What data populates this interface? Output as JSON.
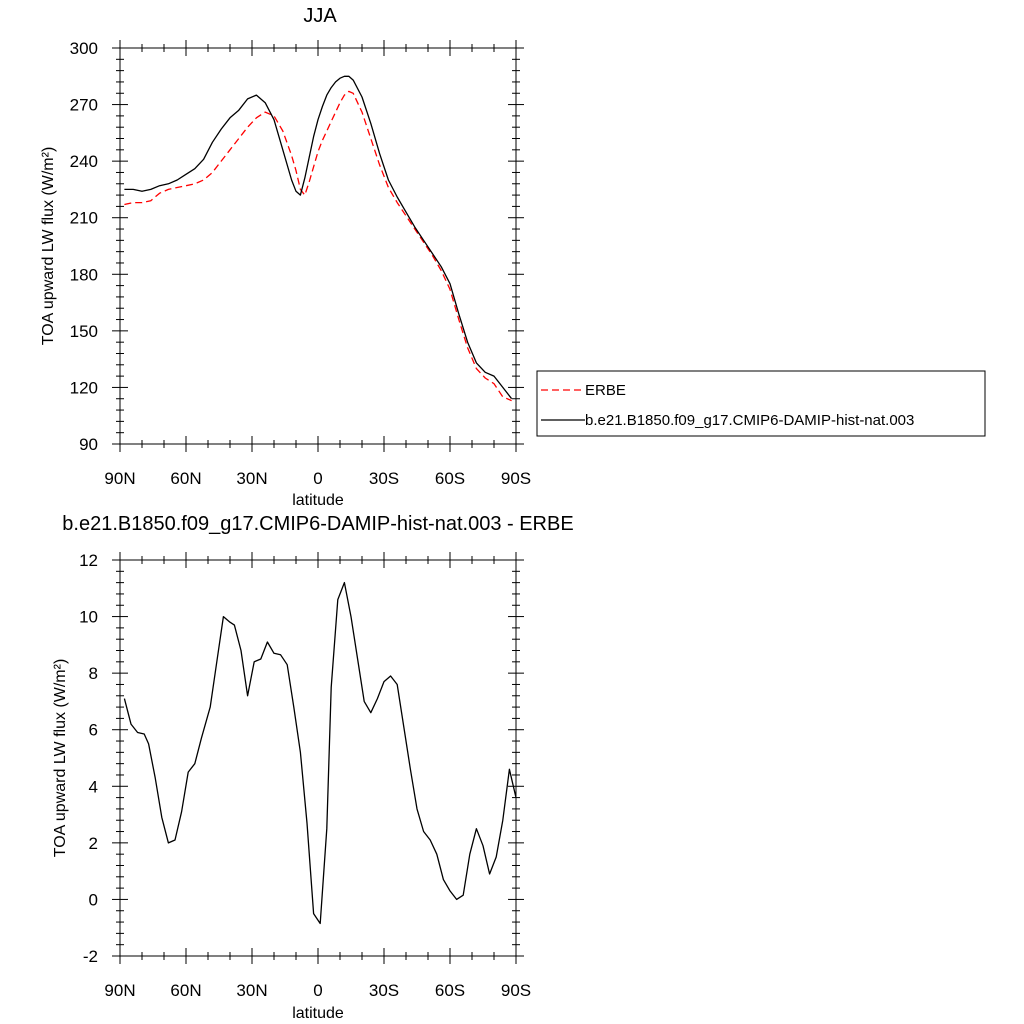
{
  "chart_data": [
    {
      "type": "line",
      "title": "JJA",
      "xlabel": "latitude",
      "ylabel": "TOA upward LW flux (W/m²)",
      "xlim": [
        -90,
        90
      ],
      "ylim": [
        90,
        300
      ],
      "xticks": [
        -90,
        -60,
        -30,
        0,
        30,
        60,
        90
      ],
      "xtick_labels": [
        "90N",
        "60N",
        "30N",
        "0",
        "30S",
        "60S",
        "90S"
      ],
      "yticks": [
        90,
        120,
        150,
        180,
        210,
        240,
        270,
        300
      ],
      "ytick_labels": [
        "90",
        "120",
        "150",
        "180",
        "210",
        "240",
        "270",
        "300"
      ],
      "grid": false,
      "legend": "outside-right",
      "series": [
        {
          "name": "ERBE",
          "color": "#ff0000",
          "dash": "dashed",
          "x": [
            -88,
            -84,
            -80,
            -76,
            -72,
            -68,
            -64,
            -60,
            -56,
            -52,
            -48,
            -44,
            -40,
            -36,
            -32,
            -28,
            -24,
            -20,
            -16,
            -12,
            -10,
            -8,
            -6,
            -4,
            -2,
            0,
            2,
            4,
            6,
            8,
            10,
            12,
            14,
            16,
            20,
            24,
            28,
            32,
            36,
            40,
            44,
            48,
            52,
            56,
            60,
            64,
            68,
            72,
            76,
            80,
            84,
            88
          ],
          "values": [
            217,
            218,
            218,
            219,
            223,
            225,
            226,
            227,
            228,
            230,
            234,
            240,
            246,
            252,
            258,
            263,
            266,
            264,
            256,
            243,
            235,
            225,
            222,
            229,
            237,
            245,
            251,
            256,
            261,
            266,
            271,
            275,
            277,
            276,
            266,
            252,
            238,
            226,
            218,
            211,
            204,
            197,
            190,
            182,
            172,
            156,
            141,
            130,
            125,
            122,
            115,
            113
          ]
        },
        {
          "name": "b.e21.B1850.f09_g17.CMIP6-DAMIP-hist-nat.003",
          "color": "#000000",
          "dash": "solid",
          "x": [
            -88,
            -84,
            -80,
            -76,
            -72,
            -68,
            -64,
            -60,
            -56,
            -52,
            -48,
            -44,
            -40,
            -36,
            -32,
            -28,
            -24,
            -20,
            -16,
            -12,
            -10,
            -8,
            -6,
            -4,
            -2,
            0,
            2,
            4,
            6,
            8,
            10,
            12,
            14,
            16,
            20,
            24,
            28,
            32,
            36,
            40,
            44,
            48,
            52,
            56,
            60,
            64,
            68,
            72,
            76,
            80,
            84,
            88
          ],
          "values": [
            225,
            225,
            224,
            225,
            227,
            228,
            230,
            233,
            236,
            241,
            250,
            257,
            263,
            267,
            273,
            275,
            271,
            262,
            246,
            230,
            224,
            222,
            231,
            242,
            253,
            262,
            269,
            275,
            279,
            282,
            284,
            285,
            285,
            283,
            274,
            260,
            244,
            230,
            221,
            213,
            205,
            198,
            191,
            184,
            175,
            159,
            144,
            133,
            128,
            126,
            120,
            114
          ]
        }
      ]
    },
    {
      "type": "line",
      "title": "b.e21.B1850.f09_g17.CMIP6-DAMIP-hist-nat.003 - ERBE",
      "xlabel": "latitude",
      "ylabel": "TOA upward LW flux (W/m²)",
      "xlim": [
        -90,
        90
      ],
      "ylim": [
        -2,
        12
      ],
      "xticks": [
        -90,
        -60,
        -30,
        0,
        30,
        60,
        90
      ],
      "xtick_labels": [
        "90N",
        "60N",
        "30N",
        "0",
        "30S",
        "60S",
        "90S"
      ],
      "yticks": [
        -2,
        0,
        2,
        4,
        6,
        8,
        10,
        12
      ],
      "ytick_labels": [
        "-2",
        "0",
        "2",
        "4",
        "6",
        "8",
        "10",
        "12"
      ],
      "grid": false,
      "series": [
        {
          "color": "#000000",
          "dash": "solid",
          "x": [
            -88,
            -85,
            -82,
            -79,
            -77,
            -74,
            -71,
            -68,
            -65,
            -62,
            -59,
            -56,
            -53,
            -49,
            -46,
            -43,
            -40,
            -38,
            -35,
            -32,
            -29,
            -26,
            -23,
            -20,
            -17,
            -14,
            -11,
            -8,
            -5,
            -2,
            1,
            4,
            6,
            9,
            12,
            15,
            18,
            21,
            24,
            27,
            30,
            33,
            36,
            39,
            42,
            45,
            48,
            51,
            54,
            57,
            60,
            63,
            66,
            69,
            72,
            75,
            78,
            81,
            84,
            87,
            90
          ],
          "values": [
            7.1,
            6.2,
            5.9,
            5.85,
            5.5,
            4.3,
            2.9,
            2.0,
            2.1,
            3.1,
            4.5,
            4.8,
            5.7,
            6.8,
            8.4,
            10.0,
            9.8,
            9.7,
            8.8,
            7.2,
            8.4,
            8.5,
            9.1,
            8.7,
            8.65,
            8.3,
            6.8,
            5.2,
            2.7,
            -0.5,
            -0.85,
            2.5,
            7.5,
            10.6,
            11.2,
            10.0,
            8.5,
            7.0,
            6.6,
            7.1,
            7.7,
            7.9,
            7.6,
            6.1,
            4.6,
            3.2,
            2.4,
            2.1,
            1.6,
            0.7,
            0.3,
            0.0,
            0.15,
            1.6,
            2.5,
            1.9,
            0.9,
            1.5,
            2.8,
            4.6,
            3.6
          ]
        }
      ]
    }
  ]
}
